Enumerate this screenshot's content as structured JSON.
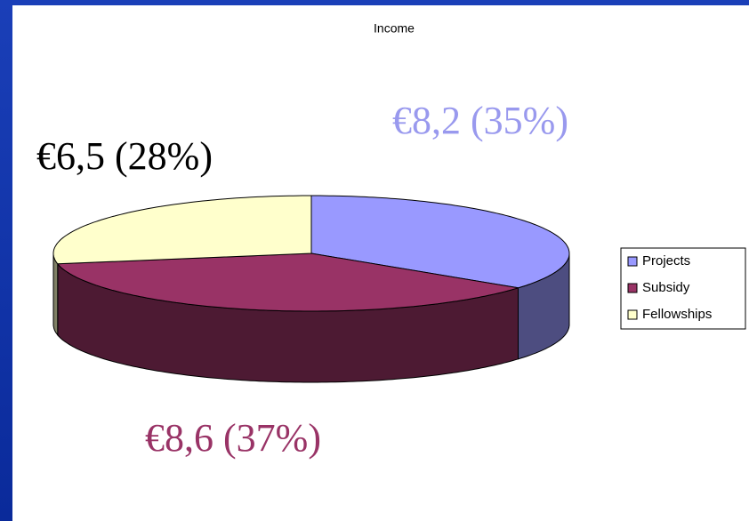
{
  "chart_data": {
    "type": "pie",
    "title": "Income",
    "categories": [
      "Projects",
      "Subsidy",
      "Fellowships"
    ],
    "values": [
      8.2,
      8.6,
      6.5
    ],
    "value_labels": [
      "€8,2 (35%)",
      "€8,6 (37%)",
      "€6,5 (28%)"
    ],
    "colors": [
      "#9999ff",
      "#993366",
      "#ffffcc"
    ],
    "label_colors": [
      "#9999ee",
      "#993366",
      "#000000"
    ],
    "legend": "right"
  }
}
